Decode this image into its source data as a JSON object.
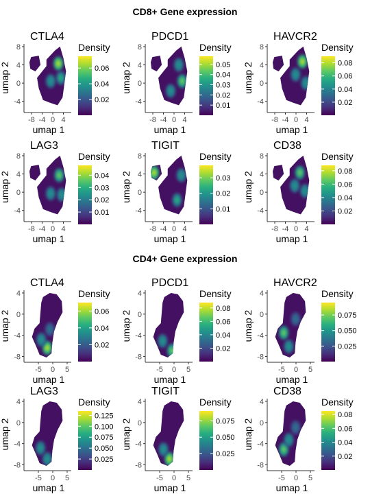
{
  "sections": [
    {
      "title": "CD8+ Gene expression"
    },
    {
      "title": "CD4+ Gene expression"
    }
  ],
  "colors": {
    "viridis": [
      "#440154",
      "#472d7b",
      "#3b528b",
      "#2c728e",
      "#21918c",
      "#28ae80",
      "#5ec962",
      "#addc30",
      "#fde725"
    ],
    "axis": "#333333"
  },
  "chart_data": [
    {
      "type": "heatmap",
      "section": 0,
      "title": "CTLA4",
      "xlabel": "umap 1",
      "ylabel": "umap 2",
      "xticks": [
        "-8",
        "-4",
        "0",
        "4"
      ],
      "yticks": [
        "8",
        "4",
        "0",
        "-4"
      ],
      "legend_title": "Density",
      "legend_ticks": [
        "0.06",
        "0.04",
        "0.02"
      ],
      "legend_range": [
        0.0,
        0.075
      ]
    },
    {
      "type": "heatmap",
      "section": 0,
      "title": "PDCD1",
      "xlabel": "umap 1",
      "ylabel": "umap 2",
      "xticks": [
        "-8",
        "-4",
        "0",
        "4"
      ],
      "yticks": [
        "8",
        "4",
        "0",
        "-4"
      ],
      "legend_title": "Density",
      "legend_ticks": [
        "0.05",
        "0.04",
        "0.03",
        "0.02",
        "0.01"
      ],
      "legend_range": [
        0.0,
        0.058
      ]
    },
    {
      "type": "heatmap",
      "section": 0,
      "title": "HAVCR2",
      "xlabel": "umap 1",
      "ylabel": "umap 2",
      "xticks": [
        "-8",
        "-4",
        "0",
        "4"
      ],
      "yticks": [
        "8",
        "4",
        "0",
        "-4"
      ],
      "legend_title": "Density",
      "legend_ticks": [
        "0.08",
        "0.06",
        "0.04",
        "0.02"
      ],
      "legend_range": [
        0.0,
        0.09
      ]
    },
    {
      "type": "heatmap",
      "section": 0,
      "title": "LAG3",
      "xlabel": "umap 1",
      "ylabel": "umap 2",
      "xticks": [
        "-8",
        "-4",
        "0",
        "4"
      ],
      "yticks": [
        "8",
        "4",
        "0",
        "-4"
      ],
      "legend_title": "Density",
      "legend_ticks": [
        "0.04",
        "0.03",
        "0.02",
        "0.01"
      ],
      "legend_range": [
        0.0,
        0.048
      ]
    },
    {
      "type": "heatmap",
      "section": 0,
      "title": "TIGIT",
      "xlabel": "umap 1",
      "ylabel": "umap 2",
      "xticks": [
        "-8",
        "-4",
        "0",
        "4"
      ],
      "yticks": [
        "8",
        "4",
        "0",
        "-4"
      ],
      "legend_title": "Density",
      "legend_ticks": [
        "0.03",
        "0.02",
        "0.01"
      ],
      "legend_range": [
        0.0,
        0.038
      ]
    },
    {
      "type": "heatmap",
      "section": 0,
      "title": "CD38",
      "xlabel": "umap 1",
      "ylabel": "umap 2",
      "xticks": [
        "-8",
        "-4",
        "0",
        "4"
      ],
      "yticks": [
        "8",
        "4",
        "0",
        "-4"
      ],
      "legend_title": "Density",
      "legend_ticks": [
        "0.08",
        "0.06",
        "0.04",
        "0.02"
      ],
      "legend_range": [
        0.0,
        0.088
      ]
    },
    {
      "type": "heatmap",
      "section": 1,
      "title": "CTLA4",
      "xlabel": "umap 1",
      "ylabel": "umap 2",
      "xticks": [
        "-5",
        "0",
        "5"
      ],
      "yticks": [
        "4",
        "0",
        "-4",
        "-8"
      ],
      "legend_title": "Density",
      "legend_ticks": [
        "0.06",
        "0.04",
        "0.02"
      ],
      "legend_range": [
        0.0,
        0.07
      ]
    },
    {
      "type": "heatmap",
      "section": 1,
      "title": "PDCD1",
      "xlabel": "umap 1",
      "ylabel": "umap 2",
      "xticks": [
        "-5",
        "0",
        "5"
      ],
      "yticks": [
        "4",
        "0",
        "-4",
        "-8"
      ],
      "legend_title": "Density",
      "legend_ticks": [
        "0.08",
        "0.06",
        "0.04",
        "0.02"
      ],
      "legend_range": [
        0.0,
        0.088
      ]
    },
    {
      "type": "heatmap",
      "section": 1,
      "title": "HAVCR2",
      "xlabel": "umap 1",
      "ylabel": "umap 2",
      "xticks": [
        "-5",
        "0",
        "5"
      ],
      "yticks": [
        "4",
        "0",
        "-4",
        "-8"
      ],
      "legend_title": "Density",
      "legend_ticks": [
        "0.075",
        "0.050",
        "0.025"
      ],
      "legend_range": [
        0.0,
        0.095
      ]
    },
    {
      "type": "heatmap",
      "section": 1,
      "title": "LAG3",
      "xlabel": "umap 1",
      "ylabel": "umap 2",
      "xticks": [
        "-5",
        "0",
        "5"
      ],
      "yticks": [
        "4",
        "0",
        "-4",
        "-8"
      ],
      "legend_title": "Density",
      "legend_ticks": [
        "0.125",
        "0.100",
        "0.075",
        "0.050",
        "0.025"
      ],
      "legend_range": [
        0.0,
        0.135
      ]
    },
    {
      "type": "heatmap",
      "section": 1,
      "title": "TIGIT",
      "xlabel": "umap 1",
      "ylabel": "umap 2",
      "xticks": [
        "-5",
        "0",
        "5"
      ],
      "yticks": [
        "4",
        "0",
        "-4",
        "-8"
      ],
      "legend_title": "Density",
      "legend_ticks": [
        "0.075",
        "0.050",
        "0.025"
      ],
      "legend_range": [
        0.0,
        0.09
      ]
    },
    {
      "type": "heatmap",
      "section": 1,
      "title": "CD38",
      "xlabel": "umap 1",
      "ylabel": "umap 2",
      "xticks": [
        "-5",
        "0",
        "5"
      ],
      "yticks": [
        "4",
        "0",
        "-4",
        "-8"
      ],
      "legend_title": "Density",
      "legend_ticks": [
        "0.08",
        "0.06",
        "0.04",
        "0.02"
      ],
      "legend_range": [
        0.0,
        0.085
      ]
    }
  ]
}
